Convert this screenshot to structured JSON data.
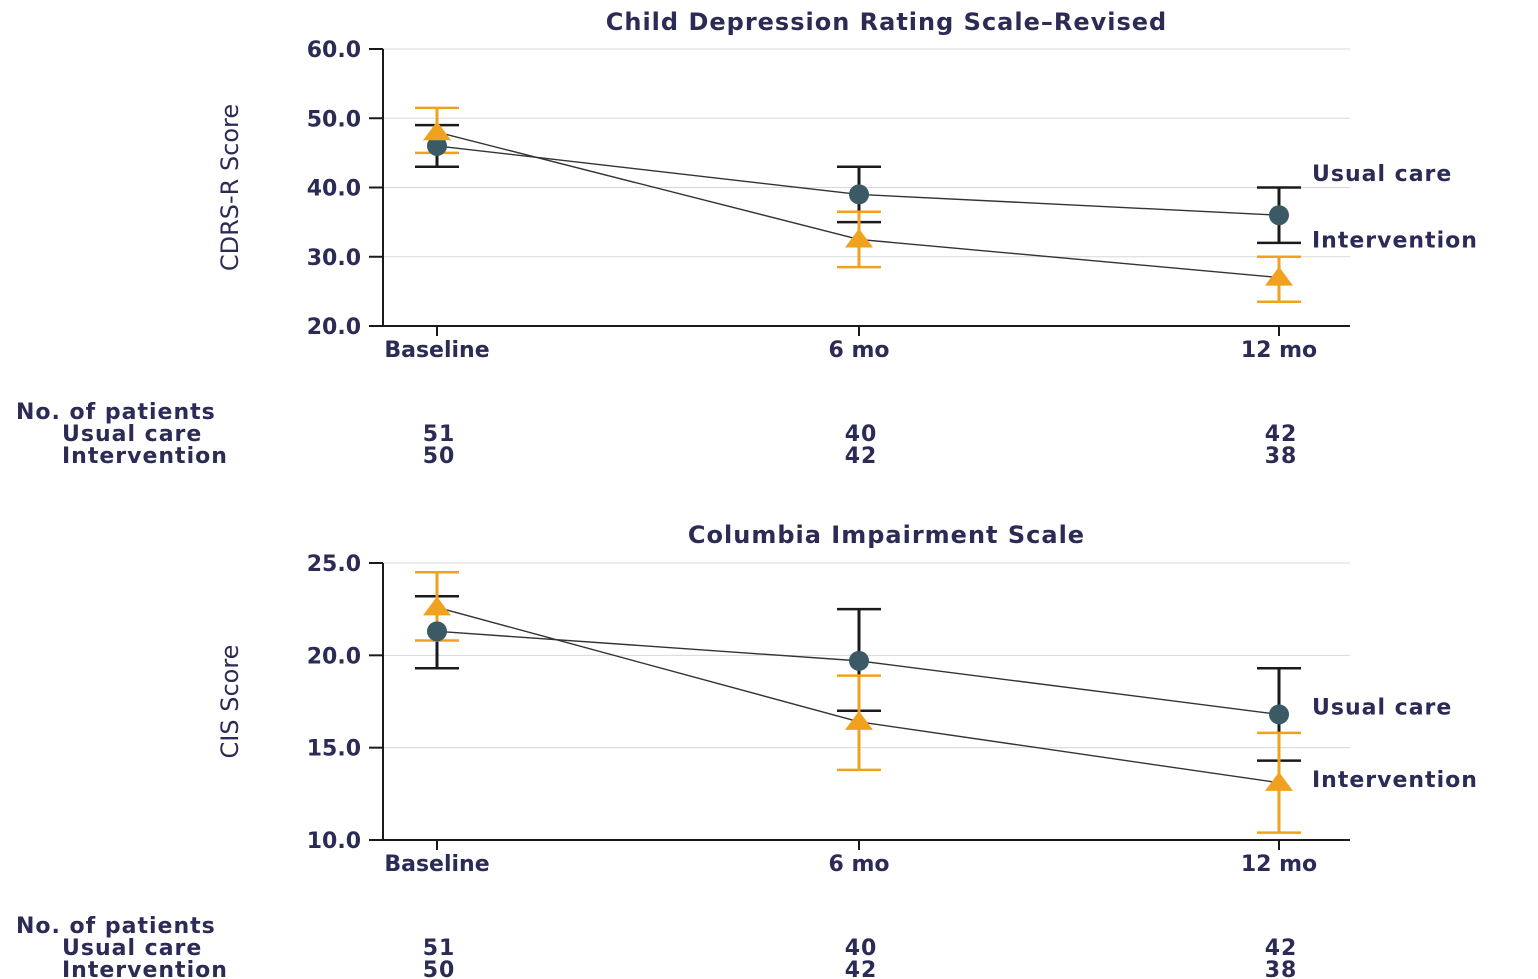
{
  "colors": {
    "usual_care": "#3b5a66",
    "intervention": "#f0a21e",
    "axis": "#1a1a1a",
    "text": "#2b2b55",
    "grid": "#d8d8d8"
  },
  "np_header": "No. of patients",
  "chart_data": [
    {
      "type": "line",
      "title": "Child Depression Rating Scale–Revised",
      "ylabel": "CDRS-R Score",
      "xlabel": "",
      "categories": [
        "Baseline",
        "6 mo",
        "12 mo"
      ],
      "ylim": [
        20,
        60
      ],
      "yticks": [
        "20.0",
        "30.0",
        "40.0",
        "50.0",
        "60.0"
      ],
      "grid": true,
      "series": [
        {
          "name": "Usual care",
          "marker": "circle",
          "values": [
            46.0,
            39.0,
            36.0
          ],
          "ci_low": [
            43.0,
            35.0,
            32.0
          ],
          "ci_high": [
            49.0,
            43.0,
            40.0
          ],
          "n": [
            "51",
            "40",
            "42"
          ]
        },
        {
          "name": "Intervention",
          "marker": "triangle",
          "values": [
            48.0,
            32.5,
            27.0
          ],
          "ci_low": [
            45.0,
            28.5,
            23.5
          ],
          "ci_high": [
            51.5,
            36.5,
            30.0
          ],
          "n": [
            "50",
            "42",
            "38"
          ]
        }
      ]
    },
    {
      "type": "line",
      "title": "Columbia Impairment Scale",
      "ylabel": "CIS Score",
      "xlabel": "",
      "categories": [
        "Baseline",
        "6 mo",
        "12 mo"
      ],
      "ylim": [
        10,
        25
      ],
      "yticks": [
        "10.0",
        "15.0",
        "20.0",
        "25.0"
      ],
      "grid": true,
      "series": [
        {
          "name": "Usual care",
          "marker": "circle",
          "values": [
            21.3,
            19.7,
            16.8
          ],
          "ci_low": [
            19.3,
            17.0,
            14.3
          ],
          "ci_high": [
            23.2,
            22.5,
            19.3
          ],
          "n": [
            "51",
            "40",
            "42"
          ]
        },
        {
          "name": "Intervention",
          "marker": "triangle",
          "values": [
            22.6,
            16.4,
            13.1
          ],
          "ci_low": [
            20.8,
            13.8,
            10.4
          ],
          "ci_high": [
            24.5,
            18.9,
            15.8
          ],
          "n": [
            "50",
            "42",
            "38"
          ]
        }
      ]
    }
  ]
}
